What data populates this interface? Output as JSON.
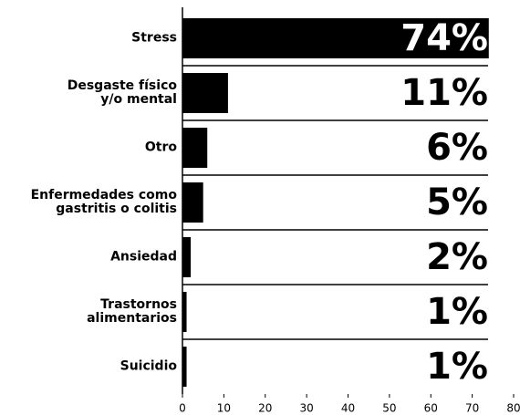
{
  "chart_data": {
    "type": "bar",
    "orientation": "horizontal",
    "categories": [
      "Stress",
      "Desgaste físico\ny/o mental",
      "Otro",
      "Enfermedades como\ngastritis o colitis",
      "Ansiedad",
      "Trastornos\nalimentarios",
      "Suicidio"
    ],
    "values": [
      74,
      11,
      6,
      5,
      2,
      1,
      1
    ],
    "value_labels": [
      "74%",
      "11%",
      "6%",
      "5%",
      "2%",
      "1%",
      "1%"
    ],
    "color": "#000000",
    "xlim": [
      0,
      80
    ],
    "xticks": [
      0,
      10,
      20,
      30,
      40,
      50,
      60,
      70,
      80
    ]
  }
}
